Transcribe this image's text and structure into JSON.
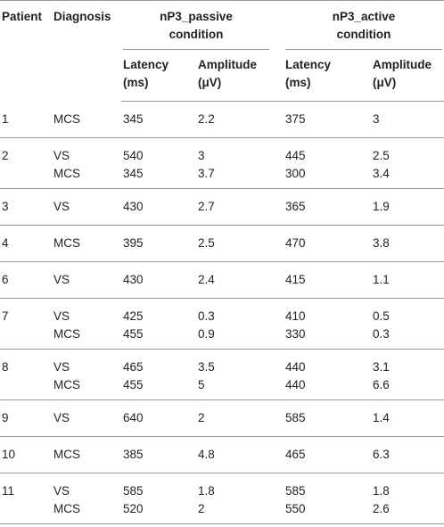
{
  "table": {
    "header": {
      "patient": "Patient",
      "diagnosis": "Diagnosis",
      "passive": [
        "nP3_passive",
        "condition"
      ],
      "active": [
        "nP3_active",
        "condition"
      ],
      "latency": [
        "Latency",
        "(ms)"
      ],
      "amplitude": [
        "Amplitude",
        "(μV)"
      ]
    },
    "rows": [
      {
        "patient": 1,
        "entries": [
          [
            "MCS",
            345,
            2.2,
            375,
            3
          ]
        ]
      },
      {
        "patient": 2,
        "entries": [
          [
            "VS",
            540,
            3,
            445,
            2.5
          ],
          [
            "MCS",
            345,
            3.7,
            300,
            3.4
          ]
        ]
      },
      {
        "patient": 3,
        "entries": [
          [
            "VS",
            430,
            2.7,
            365,
            1.9
          ]
        ]
      },
      {
        "patient": 4,
        "entries": [
          [
            "MCS",
            395,
            2.5,
            470,
            3.8
          ]
        ]
      },
      {
        "patient": 6,
        "entries": [
          [
            "VS",
            430,
            2.4,
            415,
            1.1
          ]
        ]
      },
      {
        "patient": 7,
        "entries": [
          [
            "VS",
            425,
            0.3,
            410,
            0.5
          ],
          [
            "MCS",
            455,
            0.9,
            330,
            0.3
          ]
        ]
      },
      {
        "patient": 8,
        "entries": [
          [
            "VS",
            465,
            3.5,
            440,
            3.1
          ],
          [
            "MCS",
            455,
            5,
            440,
            6.6
          ]
        ]
      },
      {
        "patient": 9,
        "entries": [
          [
            "VS",
            640,
            2,
            585,
            1.4
          ]
        ]
      },
      {
        "patient": 10,
        "entries": [
          [
            "MCS",
            385,
            4.8,
            465,
            6.3
          ]
        ]
      },
      {
        "patient": 11,
        "entries": [
          [
            "VS",
            585,
            1.8,
            585,
            1.8
          ],
          [
            "MCS",
            520,
            2,
            550,
            2.6
          ]
        ]
      }
    ]
  }
}
